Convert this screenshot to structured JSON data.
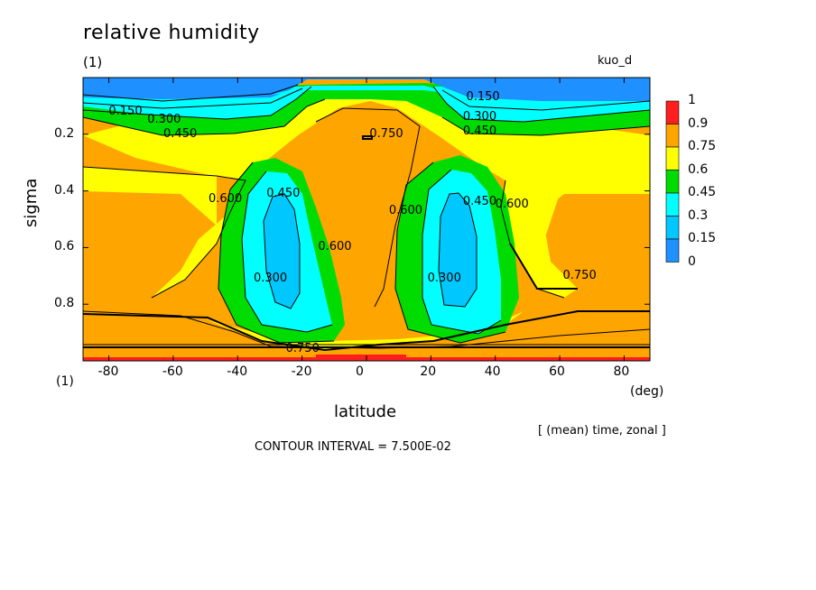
{
  "title": "relative humidity",
  "subtitle_left": "(1)",
  "subtitle_right": "kuo_d",
  "y_unit": "(1)",
  "x_unit": "(deg)",
  "footer_note": "[ (mean) time, zonal ]",
  "contour_interval": "CONTOUR INTERVAL = 7.500E-02",
  "colors": {
    "band_0": "#1e90ff",
    "band_1": "#00c8ff",
    "band_2": "#00ffff",
    "band_3": "#00dc00",
    "band_4": "#ffff00",
    "band_5": "#ffa500",
    "band_6": "#ff1e1e"
  },
  "chart_data": {
    "type": "contour",
    "xlabel": "latitude",
    "ylabel": "sigma",
    "xlim": [
      -88,
      88
    ],
    "ylim": [
      0.0,
      1.0
    ],
    "y_inverted": true,
    "x_ticks": [
      -80,
      -60,
      -40,
      -20,
      0,
      20,
      40,
      60,
      80
    ],
    "y_ticks": [
      0.2,
      0.4,
      0.6,
      0.8
    ],
    "contour_labels": [
      {
        "text": "0.150",
        "x": -75,
        "y": 0.12
      },
      {
        "text": "0.300",
        "x": -63,
        "y": 0.15
      },
      {
        "text": "0.450",
        "x": -58,
        "y": 0.2
      },
      {
        "text": "0.150",
        "x": 36,
        "y": 0.07
      },
      {
        "text": "0.300",
        "x": 35,
        "y": 0.14
      },
      {
        "text": "0.450",
        "x": 35,
        "y": 0.19
      },
      {
        "text": "0.750",
        "x": 6,
        "y": 0.2
      },
      {
        "text": "0.600",
        "x": -44,
        "y": 0.43
      },
      {
        "text": "0.450",
        "x": -26,
        "y": 0.41
      },
      {
        "text": "0.600",
        "x": -10,
        "y": 0.6
      },
      {
        "text": "0.300",
        "x": -30,
        "y": 0.71
      },
      {
        "text": "0.600",
        "x": 12,
        "y": 0.47
      },
      {
        "text": "0.450",
        "x": 35,
        "y": 0.44
      },
      {
        "text": "0.600",
        "x": 45,
        "y": 0.45
      },
      {
        "text": "0.300",
        "x": 24,
        "y": 0.71
      },
      {
        "text": "0.750",
        "x": 66,
        "y": 0.7
      },
      {
        "text": "0.750",
        "x": -20,
        "y": 0.96
      }
    ],
    "colorbar": {
      "levels": [
        "1",
        "0.9",
        "0.75",
        "0.6",
        "0.45",
        "0.3",
        "0.15",
        "0"
      ],
      "colors": [
        "#ff1e1e",
        "#ffa500",
        "#ffff00",
        "#00dc00",
        "#00ffff",
        "#00c8ff",
        "#1e90ff"
      ]
    }
  }
}
